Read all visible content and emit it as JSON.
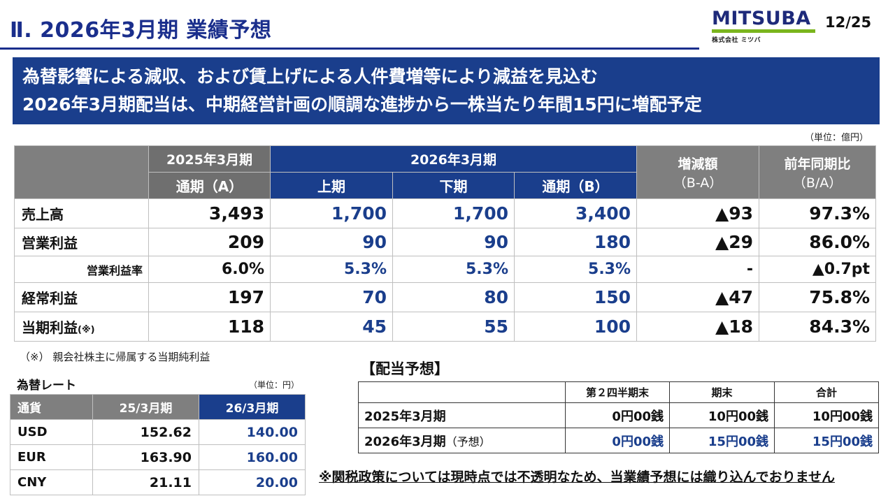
{
  "header": {
    "title": "Ⅱ. 2026年3月期 業績予想",
    "page": "12/25",
    "logo_text": "MITSUBA",
    "logo_sub": "株式会社 ミツバ"
  },
  "banner": {
    "line1": "為替影響による減収、および賃上げによる人件費増等により減益を見込む",
    "line2": "2026年3月期配当は、中期経営計画の順調な進捗から一株当たり年間15円に増配予定"
  },
  "main_table": {
    "unit": "（単位：億円）",
    "col_fy2025": "2025年3月期",
    "col_fy2026": "2026年3月期",
    "col_change": "増減額",
    "col_change_sub": "（B-A）",
    "col_yoy": "前年同期比",
    "col_yoy_sub": "（B/A）",
    "sub_full_a": "通期（A）",
    "sub_h1": "上期",
    "sub_h2": "下期",
    "sub_full_b": "通期（B）",
    "rows": [
      {
        "label": "売上高",
        "a": "3,493",
        "h1": "1,700",
        "h2": "1,700",
        "b": "3,400",
        "diff": "▲93",
        "ratio": "97.3%"
      },
      {
        "label": "営業利益",
        "a": "209",
        "h1": "90",
        "h2": "90",
        "b": "180",
        "diff": "▲29",
        "ratio": "86.0%"
      },
      {
        "label": "営業利益率",
        "a": "6.0%",
        "h1": "5.3%",
        "h2": "5.3%",
        "b": "5.3%",
        "diff": "-",
        "ratio": "▲0.7pt"
      },
      {
        "label": "経常利益",
        "a": "197",
        "h1": "70",
        "h2": "80",
        "b": "150",
        "diff": "▲47",
        "ratio": "75.8%"
      },
      {
        "label": "当期利益",
        "label_note": "(※)",
        "a": "118",
        "h1": "45",
        "h2": "55",
        "b": "100",
        "diff": "▲18",
        "ratio": "84.3%"
      }
    ],
    "footnote": "（※） 親会社株主に帰属する当期純利益"
  },
  "fx": {
    "title": "為替レート",
    "unit": "（単位：円）",
    "headers": [
      "通貨",
      "25/3月期",
      "26/3月期"
    ],
    "rows": [
      {
        "currency": "USD",
        "fy25": "152.62",
        "fy26": "140.00"
      },
      {
        "currency": "EUR",
        "fy25": "163.90",
        "fy26": "160.00"
      },
      {
        "currency": "CNY",
        "fy25": "21.11",
        "fy26": "20.00"
      }
    ]
  },
  "dividend": {
    "title": "【配当予想】",
    "headers": [
      "",
      "第２四半期末",
      "期末",
      "合計"
    ],
    "rows": [
      {
        "label": "2025年3月期",
        "label_note": "",
        "q2": "0円00銭",
        "end": "10円00銭",
        "total": "10円00銭"
      },
      {
        "label": "2026年3月期",
        "label_note": "（予想）",
        "q2": "0円00銭",
        "end": "15円00銭",
        "total": "15円00銭"
      }
    ]
  },
  "tariff_note": "※関税政策については現時点では不透明なため、当業績予想には織り込んでおりません",
  "colors": {
    "brand_blue": "#1a3e8c",
    "header_gray": "#7f7f7f",
    "logo_green": "#7ab51d"
  }
}
